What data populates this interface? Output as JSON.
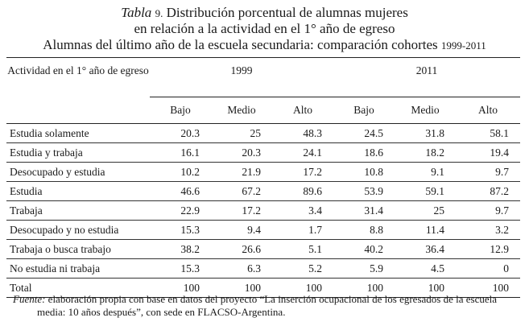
{
  "title": {
    "label_italic": "Tabla",
    "number": "9.",
    "line1": "Distribución porcentual de alumnas mujeres",
    "line2": "en relación a la actividad en el 1° año de egreso",
    "line3": "Alumnas del último año de la escuela secundaria: comparación cohortes",
    "years": "1999-2011"
  },
  "table": {
    "row_header": "Actividad en el 1° año de egreso",
    "groups": [
      "1999",
      "2011"
    ],
    "subheaders": [
      "Bajo",
      "Medio",
      "Alto",
      "Bajo",
      "Medio",
      "Alto"
    ],
    "rows": [
      {
        "label": "Estudia solamente",
        "values": [
          "20.3",
          "25",
          "48.3",
          "24.5",
          "31.8",
          "58.1"
        ]
      },
      {
        "label": "Estudia y trabaja",
        "values": [
          "16.1",
          "20.3",
          "24.1",
          "18.6",
          "18.2",
          "19.4"
        ]
      },
      {
        "label": "Desocupado y estudia",
        "values": [
          "10.2",
          "21.9",
          "17.2",
          "10.8",
          "9.1",
          "9.7"
        ]
      },
      {
        "label": "Estudia",
        "values": [
          "46.6",
          "67.2",
          "89.6",
          "53.9",
          "59.1",
          "87.2"
        ]
      },
      {
        "label": "Trabaja",
        "values": [
          "22.9",
          "17.2",
          "3.4",
          "31.4",
          "25",
          "9.7"
        ]
      },
      {
        "label": "Desocupado y no estudia",
        "values": [
          "15.3",
          "9.4",
          "1.7",
          "8.8",
          "11.4",
          "3.2"
        ]
      },
      {
        "label": "Trabaja o busca trabajo",
        "values": [
          "38.2",
          "26.6",
          "5.1",
          "40.2",
          "36.4",
          "12.9"
        ]
      },
      {
        "label": "No estudia ni trabaja",
        "values": [
          "15.3",
          "6.3",
          "5.2",
          "5.9",
          "4.5",
          "0"
        ]
      },
      {
        "label": "Total",
        "values": [
          "100",
          "100",
          "100",
          "100",
          "100",
          "100"
        ]
      }
    ]
  },
  "footnote": {
    "label_italic": "Fuente:",
    "line1": "elaboración propia con base en datos del proyecto “La inserción ocupacional de los egresados de la escuela",
    "line2": "media: 10 años después”, con sede en FLACSO-Argentina."
  }
}
